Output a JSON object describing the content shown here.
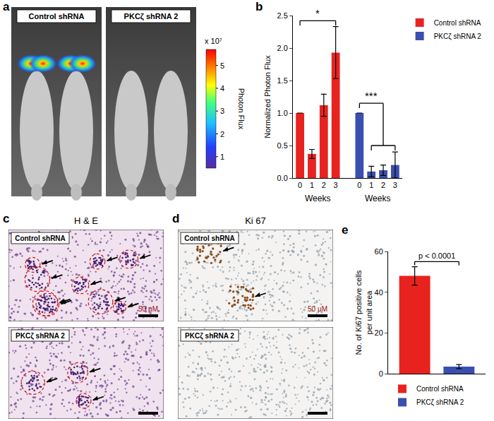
{
  "panel_labels": [
    "a",
    "b",
    "c",
    "d",
    "e"
  ],
  "images": {
    "a": {
      "groups": [
        "Control shRNA",
        "PKCζ shRNA 2"
      ],
      "colorbar": {
        "label": "Photon Flux",
        "multiplier": "x 10⁷",
        "range": [
          0.5,
          5.7
        ],
        "ticks": [
          1,
          2,
          3,
          4,
          5
        ]
      }
    },
    "c": {
      "title": "H & E",
      "panels": [
        "Control shRNA",
        "PKCζ shRNA 2"
      ],
      "scale_bar": "50 μM"
    },
    "d": {
      "title": "Ki 67",
      "panels": [
        "Control shRNA",
        "PKCζ shRNA 2"
      ],
      "scale_bar": "50 μM"
    }
  },
  "chart_data": [
    {
      "type": "bar",
      "categories": [
        "0",
        "1",
        "2",
        "3",
        null,
        "0",
        "1",
        "2",
        "3"
      ],
      "series": [
        {
          "name": "Control shRNA",
          "color": "#e8231f",
          "values": [
            1.0,
            0.37,
            1.12,
            1.93,
            null,
            null,
            null,
            null,
            null
          ],
          "errors": [
            0,
            0.07,
            0.17,
            0.4,
            null,
            null,
            null,
            null,
            null
          ]
        },
        {
          "name": "PKCζ shRNA 2",
          "color": "#3a4fb0",
          "values": [
            null,
            null,
            null,
            null,
            null,
            1.0,
            0.1,
            0.12,
            0.2
          ],
          "errors": [
            null,
            null,
            null,
            null,
            null,
            0,
            0.08,
            0.08,
            0.2
          ]
        }
      ],
      "xlabel": "Weeks",
      "ylabel": [
        "Normalized Photon Flux"
      ],
      "ylim": [
        0,
        2.5
      ],
      "yticks": [
        {
          "value": 0,
          "label": "0.0"
        },
        {
          "value": 0.5,
          "label": "0.5"
        },
        {
          "value": 1,
          "label": "1.0"
        },
        {
          "value": 1.5,
          "label": "1.5"
        },
        {
          "value": 2,
          "label": "2.0"
        },
        {
          "value": 2.5,
          "label": "2.5"
        }
      ],
      "legend": "top right",
      "brackets": [
        {
          "text": "*",
          "from": 0,
          "to": 3,
          "y": 2.42
        },
        {
          "text": "***",
          "from": 5,
          "to": 7,
          "y": 1.15,
          "span": [
            6,
            8
          ],
          "span_y": 0.5
        }
      ]
    },
    {
      "type": "bar",
      "categories": [
        null,
        null
      ],
      "series": [
        {
          "name": "Control shRNA",
          "color": "#e8231f",
          "values": [
            48,
            null
          ],
          "errors": [
            4.5,
            null
          ]
        },
        {
          "name": "PKCζ shRNA 2",
          "color": "#3a4fb0",
          "values": [
            null,
            3.5
          ],
          "errors": [
            null,
            1
          ]
        }
      ],
      "ylabel": [
        "No. of Ki67 positive cells",
        "per unit area"
      ],
      "ylim": [
        0,
        60
      ],
      "yticks": [
        0,
        20,
        40,
        60
      ],
      "tick_labels": "y",
      "legend": "bottom",
      "brackets": [
        {
          "text": "p < 0.0001",
          "from": 0,
          "to": 1,
          "y": 55
        }
      ]
    }
  ]
}
